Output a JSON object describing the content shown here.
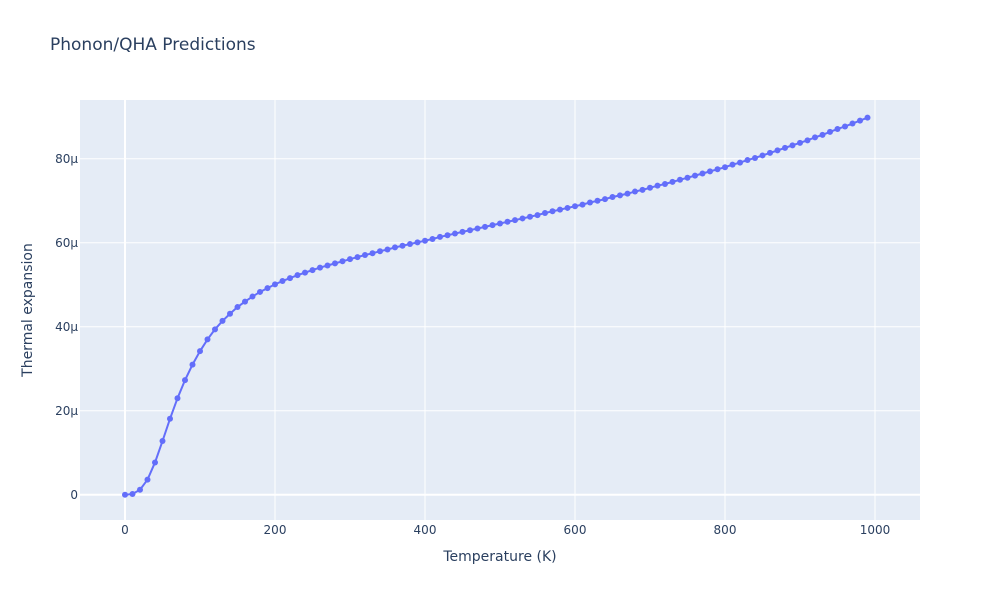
{
  "chart_data": {
    "type": "line",
    "title": "Phonon/QHA Predictions",
    "xlabel": "Temperature (K)",
    "ylabel": "Thermal expansion",
    "xlim": [
      -60,
      1060
    ],
    "ylim": [
      -6e-06,
      9.4e-05
    ],
    "xticks": [
      0,
      200,
      400,
      600,
      800,
      1000
    ],
    "xtick_labels": [
      "0",
      "200",
      "400",
      "600",
      "800",
      "1000"
    ],
    "yticks": [
      0,
      2e-05,
      4e-05,
      6e-05,
      8e-05
    ],
    "ytick_labels": [
      "0",
      "20μ",
      "40μ",
      "60μ",
      "80μ"
    ],
    "grid": true,
    "series_color": "#636efa",
    "plot_bg": "#e5ecf6",
    "series": [
      {
        "x": [
          0,
          10,
          20,
          30,
          40,
          50,
          60,
          70,
          80,
          90,
          100,
          110,
          120,
          130,
          140,
          150,
          160,
          170,
          180,
          190,
          200,
          210,
          220,
          230,
          240,
          250,
          260,
          270,
          280,
          290,
          300,
          310,
          320,
          330,
          340,
          350,
          360,
          370,
          380,
          390,
          400,
          410,
          420,
          430,
          440,
          450,
          460,
          470,
          480,
          490,
          500,
          510,
          520,
          530,
          540,
          550,
          560,
          570,
          580,
          590,
          600,
          610,
          620,
          630,
          640,
          650,
          660,
          670,
          680,
          690,
          700,
          710,
          720,
          730,
          740,
          750,
          760,
          770,
          780,
          790,
          800,
          810,
          820,
          830,
          840,
          850,
          860,
          870,
          880,
          890,
          900,
          910,
          920,
          930,
          940,
          950,
          960,
          970,
          980,
          990
        ],
        "y": [
          0,
          2e-07,
          1.2e-06,
          3.6e-06,
          7.7e-06,
          1.28e-05,
          1.81e-05,
          2.3e-05,
          2.73e-05,
          3.1e-05,
          3.42e-05,
          3.7e-05,
          3.94e-05,
          4.14e-05,
          4.31e-05,
          4.47e-05,
          4.6e-05,
          4.72e-05,
          4.83e-05,
          4.92e-05,
          5.01e-05,
          5.09e-05,
          5.16e-05,
          5.23e-05,
          5.29e-05,
          5.35e-05,
          5.41e-05,
          5.46e-05,
          5.51e-05,
          5.56e-05,
          5.61e-05,
          5.66e-05,
          5.71e-05,
          5.75e-05,
          5.8e-05,
          5.84e-05,
          5.89e-05,
          5.93e-05,
          5.97e-05,
          6.01e-05,
          6.05e-05,
          6.09e-05,
          6.14e-05,
          6.18e-05,
          6.22e-05,
          6.26e-05,
          6.3e-05,
          6.34e-05,
          6.38e-05,
          6.42e-05,
          6.46e-05,
          6.5e-05,
          6.54e-05,
          6.58e-05,
          6.62e-05,
          6.66e-05,
          6.71e-05,
          6.75e-05,
          6.79e-05,
          6.83e-05,
          6.87e-05,
          6.91e-05,
          6.96e-05,
          7e-05,
          7.04e-05,
          7.09e-05,
          7.13e-05,
          7.17e-05,
          7.22e-05,
          7.26e-05,
          7.31e-05,
          7.36e-05,
          7.4e-05,
          7.45e-05,
          7.5e-05,
          7.55e-05,
          7.6e-05,
          7.65e-05,
          7.7e-05,
          7.75e-05,
          7.8e-05,
          7.86e-05,
          7.91e-05,
          7.97e-05,
          8.02e-05,
          8.08e-05,
          8.14e-05,
          8.2e-05,
          8.26e-05,
          8.32e-05,
          8.38e-05,
          8.44e-05,
          8.51e-05,
          8.57e-05,
          8.64e-05,
          8.71e-05,
          8.77e-05,
          8.84e-05,
          8.91e-05,
          8.98e-05
        ]
      }
    ]
  }
}
